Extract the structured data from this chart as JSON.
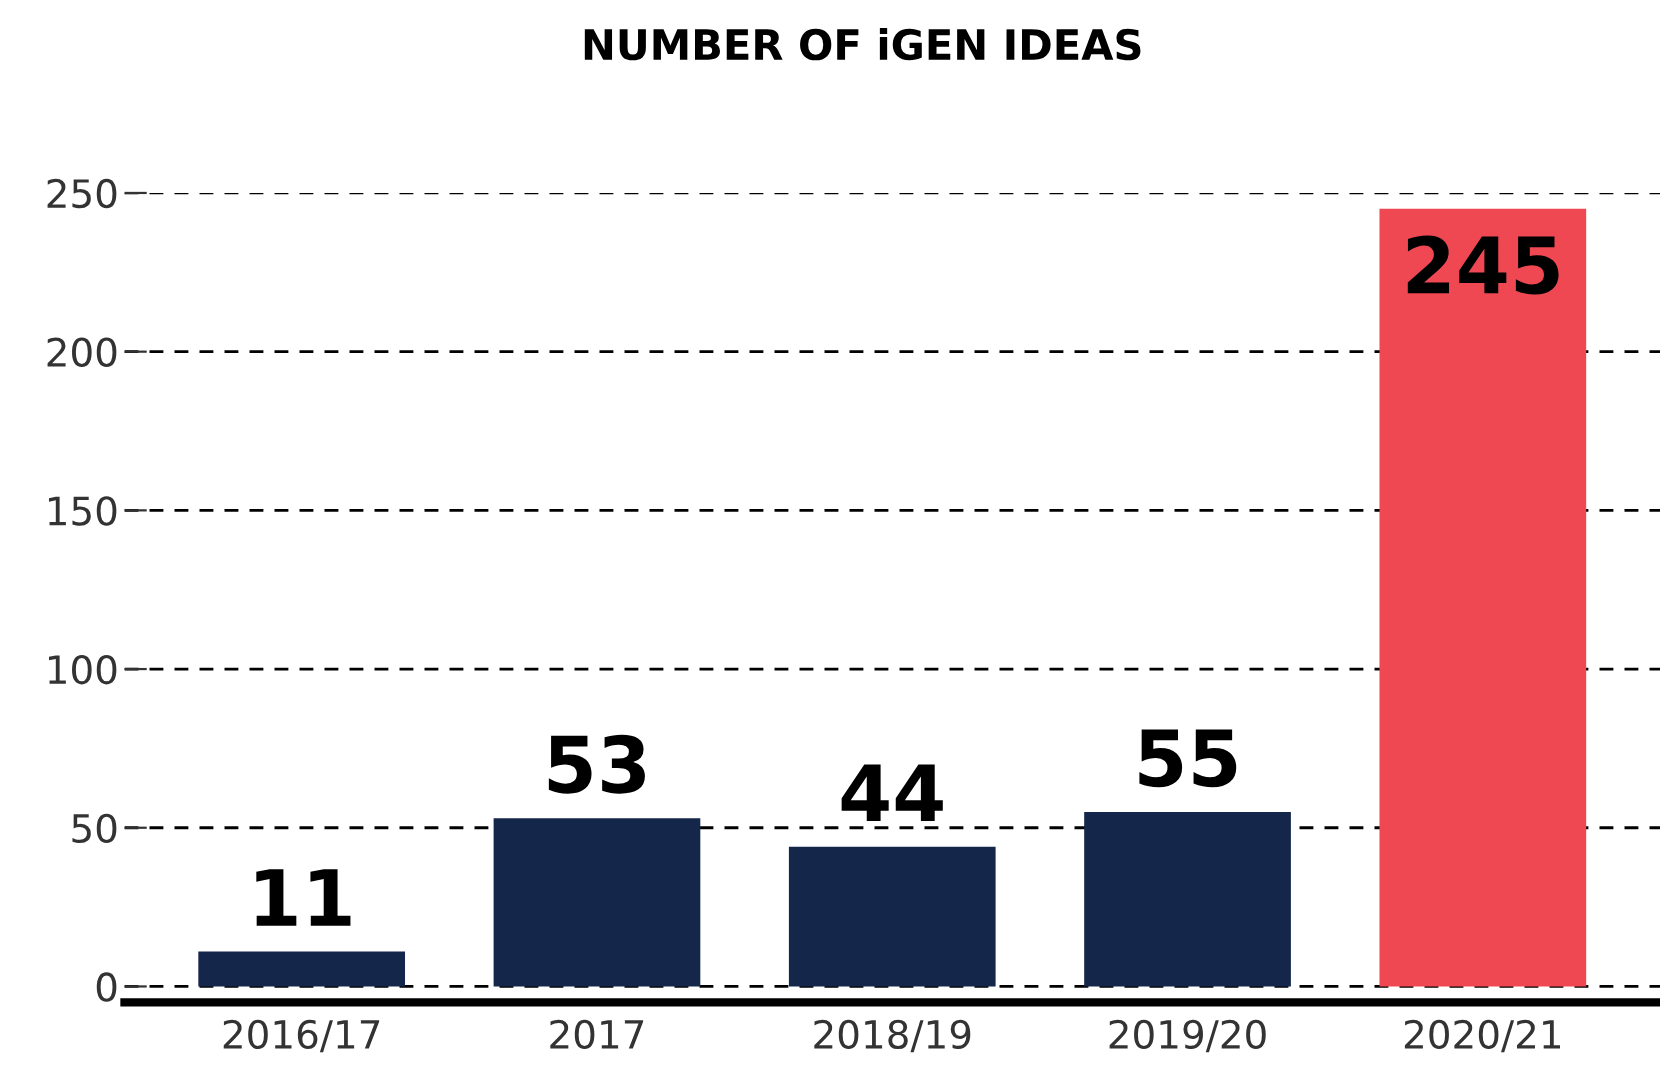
{
  "chart_data": {
    "type": "bar",
    "title": "NUMBER OF iGEN IDEAS",
    "categories": [
      "2016/17",
      "2017",
      "2018/19",
      "2019/20",
      "2020/21"
    ],
    "values": [
      11,
      53,
      44,
      55,
      245
    ],
    "colors": [
      "#14264a",
      "#14264a",
      "#14264a",
      "#14264a",
      "#ef4852"
    ],
    "ylim": [
      -5,
      250
    ],
    "yticks": [
      0,
      50,
      100,
      150,
      200,
      250
    ],
    "grid": "y",
    "data_labels": true
  }
}
